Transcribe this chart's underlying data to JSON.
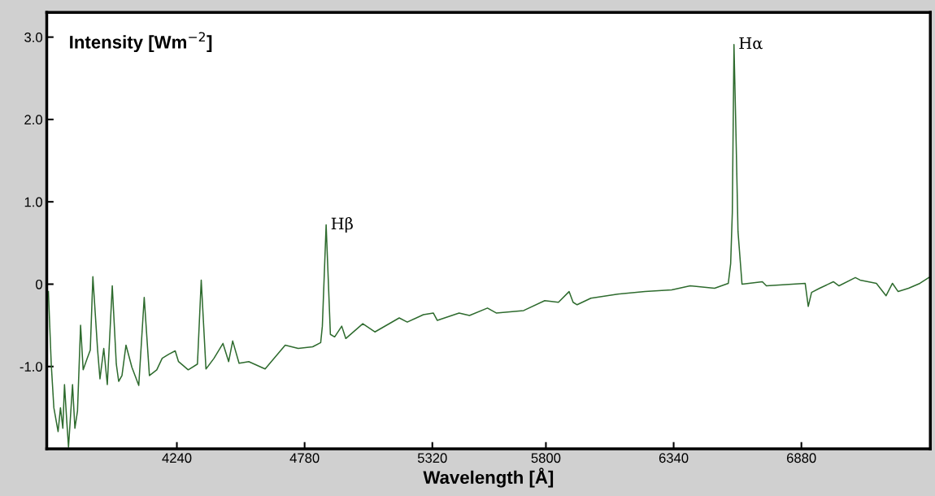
{
  "chart_data": {
    "type": "line",
    "xlabel": "Wavelength [Å]",
    "ylabel": "Intensity [Wm$^{−2}$]",
    "xlim": [
      3690,
      7425
    ],
    "xticks": [
      4240,
      4780,
      5320,
      5800,
      6340,
      6880
    ],
    "ylim": [
      -2.0,
      3.3
    ],
    "yticks": [
      {
        "value": 3,
        "label": "3.0"
      },
      {
        "value": 2,
        "label": "2.0"
      },
      {
        "value": 1,
        "label": "1.0"
      },
      {
        "value": 0,
        "label": "0"
      },
      {
        "value": -1,
        "label": "-1.0"
      }
    ],
    "marker": "none",
    "line_style": "solid",
    "annotations": [
      {
        "text": "Hβ",
        "x": 4871,
        "y": 0.72
      },
      {
        "text": "Hα",
        "x": 6595,
        "y": 2.91
      }
    ],
    "series": [
      {
        "color": "#2e6b2e",
        "x": [
          3697,
          3709,
          3720,
          3738,
          3748,
          3758,
          3765,
          3775,
          3782,
          3799,
          3809,
          3820,
          3833,
          3844,
          3861,
          3874,
          3885,
          3905,
          3915,
          3931,
          3946,
          3967,
          3984,
          3994,
          4008,
          4025,
          4050,
          4079,
          4102,
          4124,
          4155,
          4178,
          4206,
          4233,
          4247,
          4288,
          4327,
          4343,
          4363,
          4397,
          4435,
          4459,
          4476,
          4503,
          4544,
          4613,
          4698,
          4753,
          4814,
          4848,
          4855,
          4871,
          4889,
          4907,
          4937,
          4954,
          5026,
          5077,
          5180,
          5214,
          5282,
          5324,
          5341,
          5433,
          5477,
          5553,
          5590,
          5706,
          5795,
          5853,
          5898,
          5915,
          5932,
          5990,
          6103,
          6219,
          6332,
          6410,
          6513,
          6571,
          6581,
          6588,
          6595,
          6602,
          6612,
          6629,
          6715,
          6732,
          6896,
          6909,
          6923,
          6957,
          7015,
          7039,
          7108,
          7128,
          7197,
          7238,
          7265,
          7289,
          7333,
          7381,
          7419
        ],
        "values": [
          -0.09,
          -0.97,
          -1.5,
          -1.79,
          -1.5,
          -1.75,
          -1.22,
          -1.68,
          -1.98,
          -1.22,
          -1.75,
          -1.54,
          -0.5,
          -1.04,
          -0.9,
          -0.8,
          0.09,
          -0.8,
          -1.15,
          -0.78,
          -1.22,
          -0.02,
          -0.97,
          -1.18,
          -1.11,
          -0.74,
          -1.01,
          -1.23,
          -0.16,
          -1.11,
          -1.04,
          -0.9,
          -0.85,
          -0.81,
          -0.94,
          -1.04,
          -0.97,
          0.05,
          -1.03,
          -0.9,
          -0.72,
          -0.94,
          -0.69,
          -0.96,
          -0.94,
          -1.03,
          -0.74,
          -0.78,
          -0.76,
          -0.71,
          -0.51,
          0.72,
          -0.61,
          -0.64,
          -0.51,
          -0.66,
          -0.48,
          -0.58,
          -0.41,
          -0.46,
          -0.37,
          -0.35,
          -0.44,
          -0.35,
          -0.38,
          -0.29,
          -0.35,
          -0.32,
          -0.2,
          -0.22,
          -0.09,
          -0.22,
          -0.25,
          -0.17,
          -0.12,
          -0.09,
          -0.07,
          -0.02,
          -0.05,
          0.01,
          0.25,
          0.87,
          2.91,
          2.02,
          0.64,
          0.0,
          0.03,
          -0.02,
          0.01,
          -0.27,
          -0.1,
          -0.05,
          0.03,
          -0.02,
          0.08,
          0.05,
          0.01,
          -0.14,
          0.01,
          -0.09,
          -0.05,
          0.01,
          0.08
        ]
      }
    ]
  }
}
